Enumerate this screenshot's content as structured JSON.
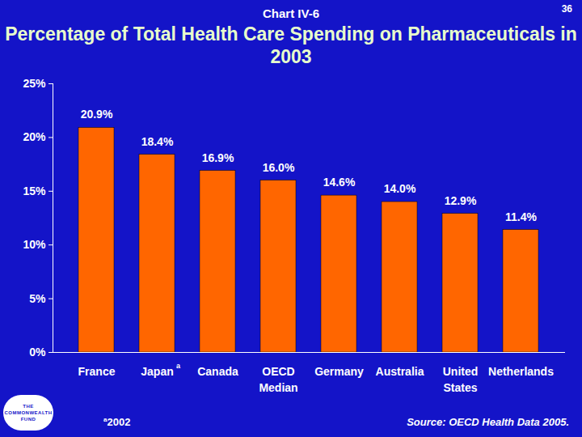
{
  "chart_data": {
    "type": "bar",
    "header": "Chart IV-6",
    "page_number": "36",
    "title": "Percentage of Total Health Care Spending on Pharmaceuticals in 2003",
    "categories": [
      "France",
      "Japan",
      "Canada",
      "OECD Median",
      "Germany",
      "Australia",
      "United States",
      "Netherlands"
    ],
    "values": [
      20.9,
      18.4,
      16.9,
      16.0,
      14.6,
      14.0,
      12.9,
      11.4
    ],
    "value_labels": [
      "20.9%",
      "18.4%",
      "16.9%",
      "16.0%",
      "14.6%",
      "14.0%",
      "12.9%",
      "11.4%"
    ],
    "data_labels": true,
    "color": "#ff6600",
    "ylim": [
      0,
      25
    ],
    "yticks": [
      {
        "value": 0,
        "label": "0%"
      },
      {
        "value": 5,
        "label": "5%"
      },
      {
        "value": 10,
        "label": "10%"
      },
      {
        "value": 15,
        "label": "15%"
      },
      {
        "value": 20,
        "label": "20%"
      },
      {
        "value": 25,
        "label": "25%"
      }
    ],
    "grid": false,
    "footnote": {
      "mark": "a",
      "category": "Japan",
      "text": "2002"
    },
    "source": "Source: OECD Health Data 2005.",
    "logo": "THE COMMONWEALTH FUND"
  }
}
